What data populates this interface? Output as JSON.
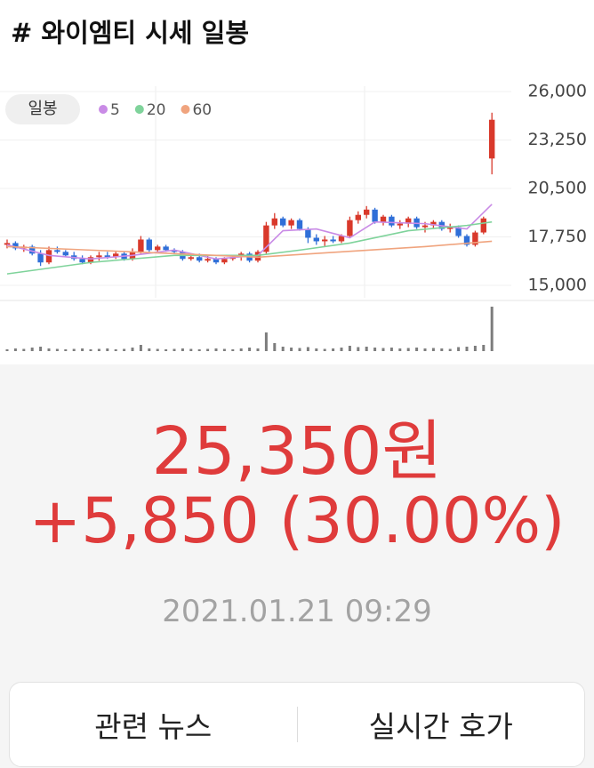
{
  "header": {
    "title": "# 와이엠티 시세 일봉"
  },
  "chart_data": {
    "type": "candlestick",
    "period_label": "일봉",
    "ylim": [
      15000,
      26000
    ],
    "yticks": [
      {
        "value": 15000,
        "label": "15,000"
      },
      {
        "value": 17750,
        "label": "17,750"
      },
      {
        "value": 20500,
        "label": "20,500"
      },
      {
        "value": 23250,
        "label": "23,250"
      },
      {
        "value": 26000,
        "label": "26,000"
      }
    ],
    "up_color": "#d9392b",
    "down_color": "#2f6fd8",
    "open": [
      17300,
      17400,
      17100,
      17200,
      16800,
      16300,
      17000,
      16900,
      16700,
      16500,
      16300,
      16600,
      16700,
      16600,
      16800,
      16500,
      16900,
      17600,
      17000,
      17200,
      17000,
      16900,
      16500,
      16600,
      16400,
      16500,
      16300,
      16500,
      16600,
      16800,
      16400,
      16900,
      18400,
      18800,
      18400,
      18700,
      18200,
      17700,
      17500,
      17600,
      17500,
      17800,
      18700,
      19000,
      19300,
      18600,
      18900,
      18400,
      18500,
      18800,
      18300,
      18400,
      18600,
      18200,
      18300,
      17800,
      17300,
      18000,
      22200
    ],
    "high": [
      17600,
      17500,
      17300,
      17300,
      17000,
      17200,
      17200,
      17000,
      16900,
      16700,
      16700,
      16900,
      16900,
      16900,
      16900,
      17100,
      17800,
      17700,
      17300,
      17300,
      17100,
      17000,
      16800,
      16800,
      16700,
      16600,
      16600,
      16700,
      16900,
      16900,
      17000,
      18600,
      19100,
      18900,
      18800,
      18800,
      18300,
      17900,
      17800,
      17800,
      17900,
      18900,
      19200,
      19500,
      19400,
      19000,
      19000,
      18700,
      18900,
      18900,
      18600,
      18700,
      18700,
      18500,
      18400,
      17900,
      18100,
      18900,
      24800
    ],
    "low": [
      17100,
      17000,
      16900,
      16700,
      16100,
      16200,
      16800,
      16600,
      16400,
      16200,
      16200,
      16400,
      16500,
      16500,
      16400,
      16400,
      16800,
      16900,
      16900,
      16900,
      16800,
      16400,
      16400,
      16300,
      16300,
      16200,
      16200,
      16400,
      16400,
      16300,
      16300,
      16800,
      18200,
      18300,
      18200,
      18100,
      17400,
      17300,
      17200,
      17400,
      17400,
      17700,
      18500,
      18800,
      18500,
      18400,
      18300,
      18200,
      18300,
      18200,
      18000,
      18200,
      18100,
      18000,
      17700,
      17200,
      17200,
      17900,
      21300
    ],
    "close": [
      17400,
      17100,
      17200,
      16800,
      16300,
      17000,
      16900,
      16700,
      16500,
      16300,
      16600,
      16700,
      16600,
      16800,
      16500,
      16900,
      17600,
      17000,
      17200,
      17000,
      16900,
      16500,
      16600,
      16400,
      16500,
      16300,
      16500,
      16600,
      16800,
      16400,
      16900,
      18400,
      18800,
      18400,
      18700,
      18200,
      17700,
      17500,
      17600,
      17500,
      17800,
      18700,
      19000,
      19300,
      18600,
      18900,
      18400,
      18500,
      18800,
      18300,
      18400,
      18600,
      18200,
      18300,
      17800,
      17300,
      18000,
      18800,
      24400
    ],
    "moving_averages": [
      {
        "name": "5",
        "color": "#c98be6",
        "x": [
          0,
          5,
          10,
          15,
          20,
          25,
          30,
          33,
          37,
          41,
          44,
          50,
          55,
          58
        ],
        "values": [
          17300,
          16700,
          16500,
          16700,
          17000,
          16500,
          16700,
          18100,
          18200,
          17700,
          18600,
          18500,
          18200,
          19600
        ]
      },
      {
        "name": "20",
        "color": "#7fd39b",
        "x": [
          0,
          10,
          20,
          30,
          35,
          41,
          48,
          55,
          58
        ],
        "values": [
          15650,
          16300,
          16700,
          16700,
          17000,
          17400,
          18100,
          18400,
          18600
        ]
      },
      {
        "name": "60",
        "color": "#f0a47e",
        "x": [
          0,
          10,
          20,
          30,
          40,
          50,
          58
        ],
        "values": [
          17200,
          17000,
          16800,
          16600,
          16900,
          17200,
          17500
        ]
      }
    ],
    "volume": [
      4,
      6,
      5,
      8,
      10,
      6,
      5,
      4,
      5,
      6,
      4,
      5,
      6,
      4,
      5,
      8,
      14,
      6,
      5,
      4,
      5,
      6,
      5,
      4,
      5,
      6,
      5,
      4,
      6,
      8,
      6,
      42,
      18,
      10,
      8,
      7,
      9,
      6,
      5,
      6,
      8,
      12,
      9,
      10,
      8,
      7,
      8,
      6,
      7,
      8,
      6,
      7,
      6,
      5,
      9,
      10,
      12,
      14,
      100
    ],
    "volume_ylim": [
      0,
      100
    ],
    "volume_color": "#7d7d7d"
  },
  "quote": {
    "price": "25,350원",
    "change": "+5,850 (30.00%)",
    "timestamp": "2021.01.21 09:29"
  },
  "buttons": [
    "관련 뉴스",
    "실시간 호가"
  ]
}
